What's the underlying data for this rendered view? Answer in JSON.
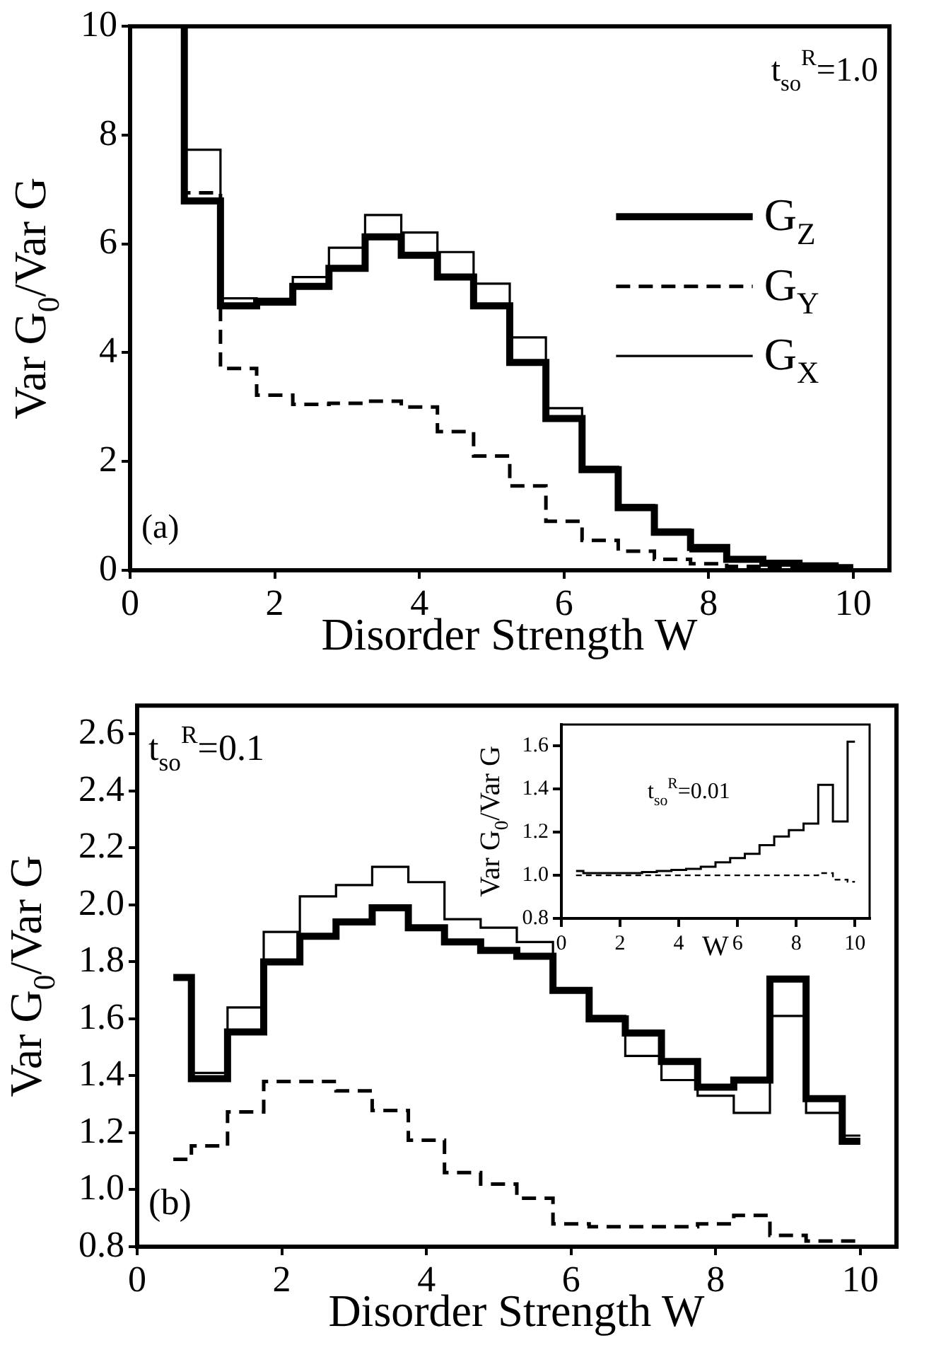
{
  "chart_data": [
    {
      "type": "step",
      "xlabel": "Disorder Strength W",
      "ylabel": "Var G$_{0}$/Var G",
      "xlim": [
        0,
        10.5
      ],
      "ylim": [
        0,
        10
      ],
      "xticks": [
        0,
        2,
        4,
        6,
        8,
        10
      ],
      "yticks": [
        0,
        2,
        4,
        6,
        8,
        10
      ],
      "legend": "right",
      "annotations": [
        "t$_{so}$$^{R}$=1.0",
        "(a)"
      ],
      "series": [
        {
          "name": "G$_{Z}$",
          "color": "#000000",
          "line_style": "solid",
          "x": [
            0.75,
            1.25,
            1.75,
            2.25,
            2.75,
            3.25,
            3.75,
            4.25,
            4.75,
            5.25,
            5.75,
            6.25,
            6.75,
            7.25,
            7.75,
            8.25,
            8.75,
            9.25,
            9.75,
            10
          ],
          "values": [
            10,
            6.79,
            4.86,
            4.93,
            5.22,
            5.55,
            6.13,
            5.79,
            5.39,
            4.86,
            3.82,
            2.79,
            1.85,
            1.15,
            0.7,
            0.42,
            0.2,
            0.13,
            0.08,
            0.05
          ]
        },
        {
          "name": "G$_{Y}$",
          "color": "#000000",
          "line_style": "dashed",
          "x": [
            0.75,
            1.25,
            1.75,
            2.25,
            2.75,
            3.25,
            3.75,
            4.25,
            4.75,
            5.25,
            5.75,
            6.25,
            6.75,
            7.25,
            7.75,
            8.25,
            8.75,
            9.25,
            9.75,
            10
          ],
          "values": [
            10,
            6.94,
            3.71,
            3.22,
            3.05,
            3.07,
            3.11,
            3.0,
            2.55,
            2.1,
            1.55,
            0.9,
            0.55,
            0.35,
            0.2,
            0.12,
            0.07,
            0.04,
            0.02,
            0.01
          ]
        },
        {
          "name": "G$_{X}$",
          "color": "#000000",
          "line_style": "solid",
          "x": [
            0.75,
            1.25,
            1.75,
            2.25,
            2.75,
            3.25,
            3.75,
            4.25,
            4.75,
            5.25,
            5.75,
            6.25,
            6.75,
            7.25,
            7.75,
            8.25,
            8.75,
            9.25,
            9.75,
            10
          ],
          "values": [
            10,
            7.73,
            5.0,
            4.99,
            5.39,
            5.93,
            6.53,
            6.21,
            5.85,
            5.27,
            4.28,
            2.98,
            1.9,
            1.2,
            0.75,
            0.35,
            0.22,
            0.12,
            0.06,
            0.04
          ]
        }
      ]
    },
    {
      "type": "step",
      "xlabel": "Disorder Strength W",
      "ylabel": "Var G$_{0}$/Var G",
      "xlim": [
        0,
        10.5
      ],
      "ylim": [
        0.8,
        2.7
      ],
      "xticks": [
        0,
        2,
        4,
        6,
        8,
        10
      ],
      "yticks": [
        {
          "value": 0.8,
          "label": "0.8"
        },
        {
          "value": 1,
          "label": "1.0"
        },
        {
          "value": 1.2,
          "label": "1.2"
        },
        {
          "value": 1.4,
          "label": "1.4"
        },
        {
          "value": 1.6,
          "label": "1.6"
        },
        {
          "value": 1.8,
          "label": "1.8"
        },
        {
          "value": 2,
          "label": "2.0"
        },
        {
          "value": 2.2,
          "label": "2.2"
        },
        {
          "value": 2.4,
          "label": "2.4"
        },
        {
          "value": 2.6,
          "label": "2.6"
        }
      ],
      "annotations": [
        "t$_{so}$$^{R}$=0.1",
        "(b)"
      ],
      "series": [
        {
          "color": "#000000",
          "line_style": "solid",
          "x": [
            0.5,
            0.75,
            1.25,
            1.75,
            2.25,
            2.75,
            3.25,
            3.75,
            4.25,
            4.75,
            5.25,
            5.75,
            6.25,
            6.75,
            7.25,
            7.75,
            8.25,
            8.75,
            9.25,
            9.75,
            10
          ],
          "values": [
            1.745,
            1.745,
            1.39,
            1.554,
            1.8,
            1.89,
            1.94,
            1.99,
            1.92,
            1.87,
            1.84,
            1.82,
            1.7,
            1.6,
            1.55,
            1.45,
            1.36,
            1.385,
            1.74,
            1.32,
            1.17
          ]
        },
        {
          "color": "#000000",
          "line_style": "dashed",
          "x": [
            0.5,
            0.75,
            1.25,
            1.75,
            2.25,
            2.75,
            3.25,
            3.75,
            4.25,
            4.75,
            5.25,
            5.75,
            6.25,
            6.75,
            7.25,
            7.75,
            8.25,
            8.75,
            9.25,
            9.75,
            10
          ],
          "values": [
            1.107,
            1.107,
            1.154,
            1.273,
            1.38,
            1.38,
            1.347,
            1.278,
            1.174,
            1.06,
            1.02,
            0.97,
            0.88,
            0.87,
            0.87,
            0.87,
            0.88,
            0.91,
            0.84,
            0.82,
            0.82
          ]
        },
        {
          "color": "#000000",
          "line_style": "solid",
          "x": [
            0.75,
            1.25,
            1.75,
            2.25,
            2.75,
            3.25,
            3.75,
            4.25,
            4.75,
            5.25,
            5.75,
            6.25,
            6.75,
            7.25,
            7.75,
            8.25,
            8.75,
            9.25,
            9.75,
            10
          ],
          "values": [
            1.41,
            1.41,
            1.64,
            1.905,
            2.03,
            2.07,
            2.134,
            2.08,
            1.95,
            1.92,
            1.87,
            1.7,
            1.61,
            1.47,
            1.385,
            1.33,
            1.27,
            1.61,
            1.27,
            1.19
          ]
        }
      ]
    },
    {
      "type": "step",
      "xlabel": "W",
      "ylabel": "Var G$_{0}$/Var G",
      "xlim": [
        0,
        10.5
      ],
      "ylim": [
        0.8,
        1.7
      ],
      "xticks": [
        0,
        2,
        4,
        6,
        8,
        10
      ],
      "yticks": [
        {
          "value": 0.8,
          "label": "0.8"
        },
        {
          "value": 1,
          "label": "1.0"
        },
        {
          "value": 1.2,
          "label": "1.2"
        },
        {
          "value": 1.4,
          "label": "1.4"
        },
        {
          "value": 1.6,
          "label": "1.6"
        }
      ],
      "annotations": [
        "t$_{so}$$^{R}$=0.01"
      ],
      "series": [
        {
          "color": "#000000",
          "line_style": "solid",
          "x": [
            0.5,
            0.75,
            1.25,
            1.75,
            2.25,
            2.75,
            3.25,
            3.75,
            4.25,
            4.75,
            5.25,
            5.75,
            6.25,
            6.75,
            7.25,
            7.75,
            8.25,
            8.75,
            9.25,
            9.75,
            10
          ],
          "values": [
            1.02,
            1.02,
            1.01,
            1.01,
            1.01,
            1.01,
            1.015,
            1.02,
            1.025,
            1.03,
            1.04,
            1.06,
            1.08,
            1.1,
            1.14,
            1.18,
            1.21,
            1.24,
            1.42,
            1.25,
            1.62
          ]
        },
        {
          "color": "#000000",
          "line_style": "dashed",
          "x": [
            0.5,
            0.75,
            1.25,
            1.75,
            2.25,
            2.75,
            3.25,
            3.75,
            4.25,
            4.75,
            5.25,
            5.75,
            6.25,
            6.75,
            7.25,
            7.75,
            8.25,
            8.75,
            9.25,
            9.75,
            10
          ],
          "values": [
            1,
            1,
            1,
            1,
            1,
            1,
            1,
            1,
            1,
            1,
            1,
            1,
            1,
            1,
            1,
            1,
            1,
            1,
            1.01,
            0.98,
            0.97
          ]
        }
      ]
    }
  ]
}
